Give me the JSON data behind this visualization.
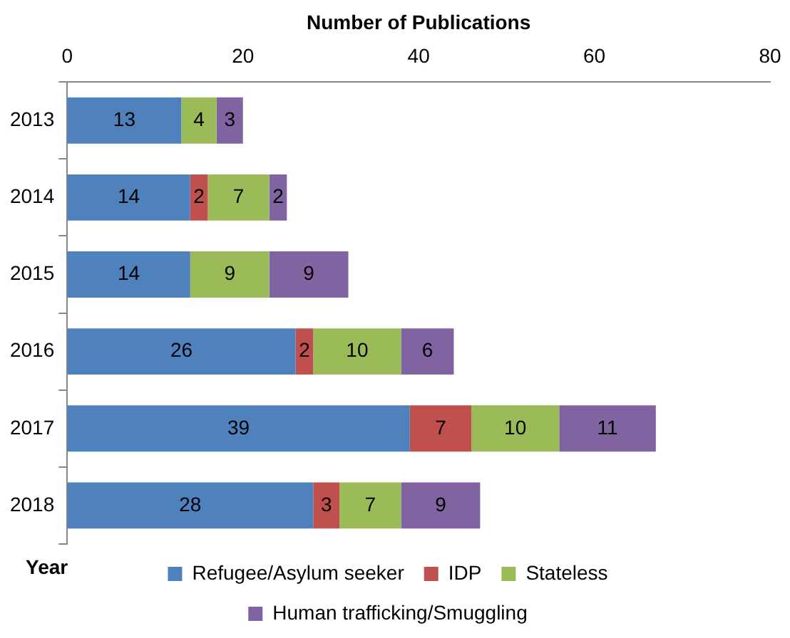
{
  "chart_data": {
    "type": "bar",
    "orientation": "horizontal",
    "stacked": true,
    "xlabel": "Number of Publications",
    "ylabel": "Year",
    "categories": [
      "2013",
      "2014",
      "2015",
      "2016",
      "2017",
      "2018"
    ],
    "series": [
      {
        "name": "Refugee/Asylum seeker",
        "color": "#4f81bd",
        "values": [
          13,
          14,
          14,
          26,
          39,
          28
        ]
      },
      {
        "name": "IDP",
        "color": "#c0504d",
        "values": [
          null,
          2,
          null,
          2,
          7,
          3
        ]
      },
      {
        "name": "Stateless",
        "color": "#9bbb59",
        "values": [
          4,
          7,
          9,
          10,
          10,
          7
        ]
      },
      {
        "name": "Human trafficking/Smuggling",
        "color": "#8064a2",
        "values": [
          3,
          2,
          9,
          6,
          11,
          9
        ]
      }
    ],
    "xlim": [
      0,
      80
    ],
    "xticks": [
      0,
      20,
      40,
      60,
      80
    ],
    "grid": false,
    "legend": "bottom",
    "data_labels": true
  }
}
